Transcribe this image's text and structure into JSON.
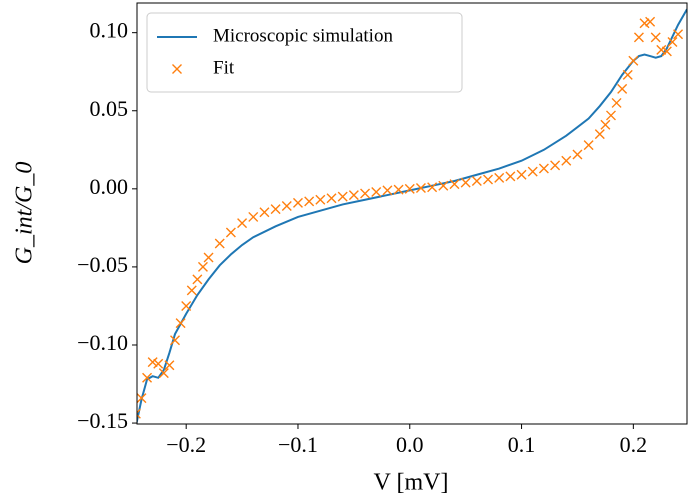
{
  "chart_data": {
    "type": "line",
    "xlabel": "V [mV]",
    "ylabel": "G_int/G_0",
    "xlim": [
      -0.244,
      0.248
    ],
    "ylim": [
      -0.1506,
      0.119
    ],
    "xticks": [
      {
        "value": -0.2,
        "label": "−0.2"
      },
      {
        "value": -0.1,
        "label": "−0.1"
      },
      {
        "value": 0,
        "label": "0.0"
      },
      0.1,
      0.2
    ],
    "yticks": [
      {
        "value": -0.15,
        "label": "−0.15"
      },
      {
        "value": -0.1,
        "label": "−0.10"
      },
      {
        "value": -0.05,
        "label": "−0.05"
      },
      {
        "value": 0,
        "label": "0.00"
      },
      0.05,
      {
        "value": 0.1,
        "label": "0.10"
      }
    ],
    "legend": "upper left",
    "series": [
      {
        "name": "Microscopic simulation",
        "color": "#1f77b4",
        "style": "line",
        "x": [
          -0.245,
          -0.24,
          -0.235,
          -0.23,
          -0.225,
          -0.22,
          -0.215,
          -0.21,
          -0.2,
          -0.19,
          -0.18,
          -0.17,
          -0.16,
          -0.15,
          -0.14,
          -0.12,
          -0.1,
          -0.08,
          -0.06,
          -0.04,
          -0.02,
          0,
          0.02,
          0.04,
          0.06,
          0.08,
          0.1,
          0.12,
          0.14,
          0.16,
          0.17,
          0.18,
          0.19,
          0.2,
          0.205,
          0.21,
          0.215,
          0.22,
          0.225,
          0.23,
          0.24,
          0.248
        ],
        "values": [
          -0.152,
          -0.135,
          -0.122,
          -0.12,
          -0.121,
          -0.116,
          -0.105,
          -0.093,
          -0.08,
          -0.068,
          -0.058,
          -0.049,
          -0.042,
          -0.036,
          -0.031,
          -0.024,
          -0.018,
          -0.014,
          -0.01,
          -0.007,
          -0.004,
          -0.001,
          0.002,
          0.005,
          0.009,
          0.013,
          0.018,
          0.025,
          0.034,
          0.045,
          0.053,
          0.062,
          0.073,
          0.082,
          0.085,
          0.086,
          0.085,
          0.084,
          0.085,
          0.09,
          0.105,
          0.115
        ]
      },
      {
        "name": "Fit",
        "color": "#ff7f0e",
        "style": "marker",
        "x": [
          -0.245,
          -0.24,
          -0.235,
          -0.23,
          -0.225,
          -0.22,
          -0.215,
          -0.21,
          -0.205,
          -0.2,
          -0.195,
          -0.19,
          -0.185,
          -0.18,
          -0.17,
          -0.16,
          -0.15,
          -0.14,
          -0.13,
          -0.12,
          -0.11,
          -0.1,
          -0.09,
          -0.08,
          -0.07,
          -0.06,
          -0.05,
          -0.04,
          -0.03,
          -0.02,
          -0.01,
          0,
          0.01,
          0.02,
          0.03,
          0.04,
          0.05,
          0.06,
          0.07,
          0.08,
          0.09,
          0.1,
          0.11,
          0.12,
          0.13,
          0.14,
          0.15,
          0.16,
          0.17,
          0.175,
          0.18,
          0.185,
          0.19,
          0.195,
          0.2,
          0.205,
          0.21,
          0.215,
          0.22,
          0.225,
          0.23,
          0.235,
          0.24
        ],
        "values": [
          -0.144,
          -0.134,
          -0.121,
          -0.111,
          -0.112,
          -0.118,
          -0.113,
          -0.097,
          -0.086,
          -0.075,
          -0.065,
          -0.058,
          -0.05,
          -0.044,
          -0.035,
          -0.028,
          -0.022,
          -0.018,
          -0.015,
          -0.013,
          -0.011,
          -0.009,
          -0.008,
          -0.007,
          -0.006,
          -0.005,
          -0.004,
          -0.003,
          -0.002,
          -0.001,
          -0.0005,
          0,
          0.0005,
          0.001,
          0.002,
          0.003,
          0.004,
          0.005,
          0.006,
          0.007,
          0.008,
          0.009,
          0.011,
          0.013,
          0.015,
          0.018,
          0.022,
          0.028,
          0.035,
          0.041,
          0.047,
          0.055,
          0.064,
          0.073,
          0.082,
          0.097,
          0.106,
          0.107,
          0.097,
          0.089,
          0.088,
          0.094,
          0.099
        ]
      }
    ]
  }
}
